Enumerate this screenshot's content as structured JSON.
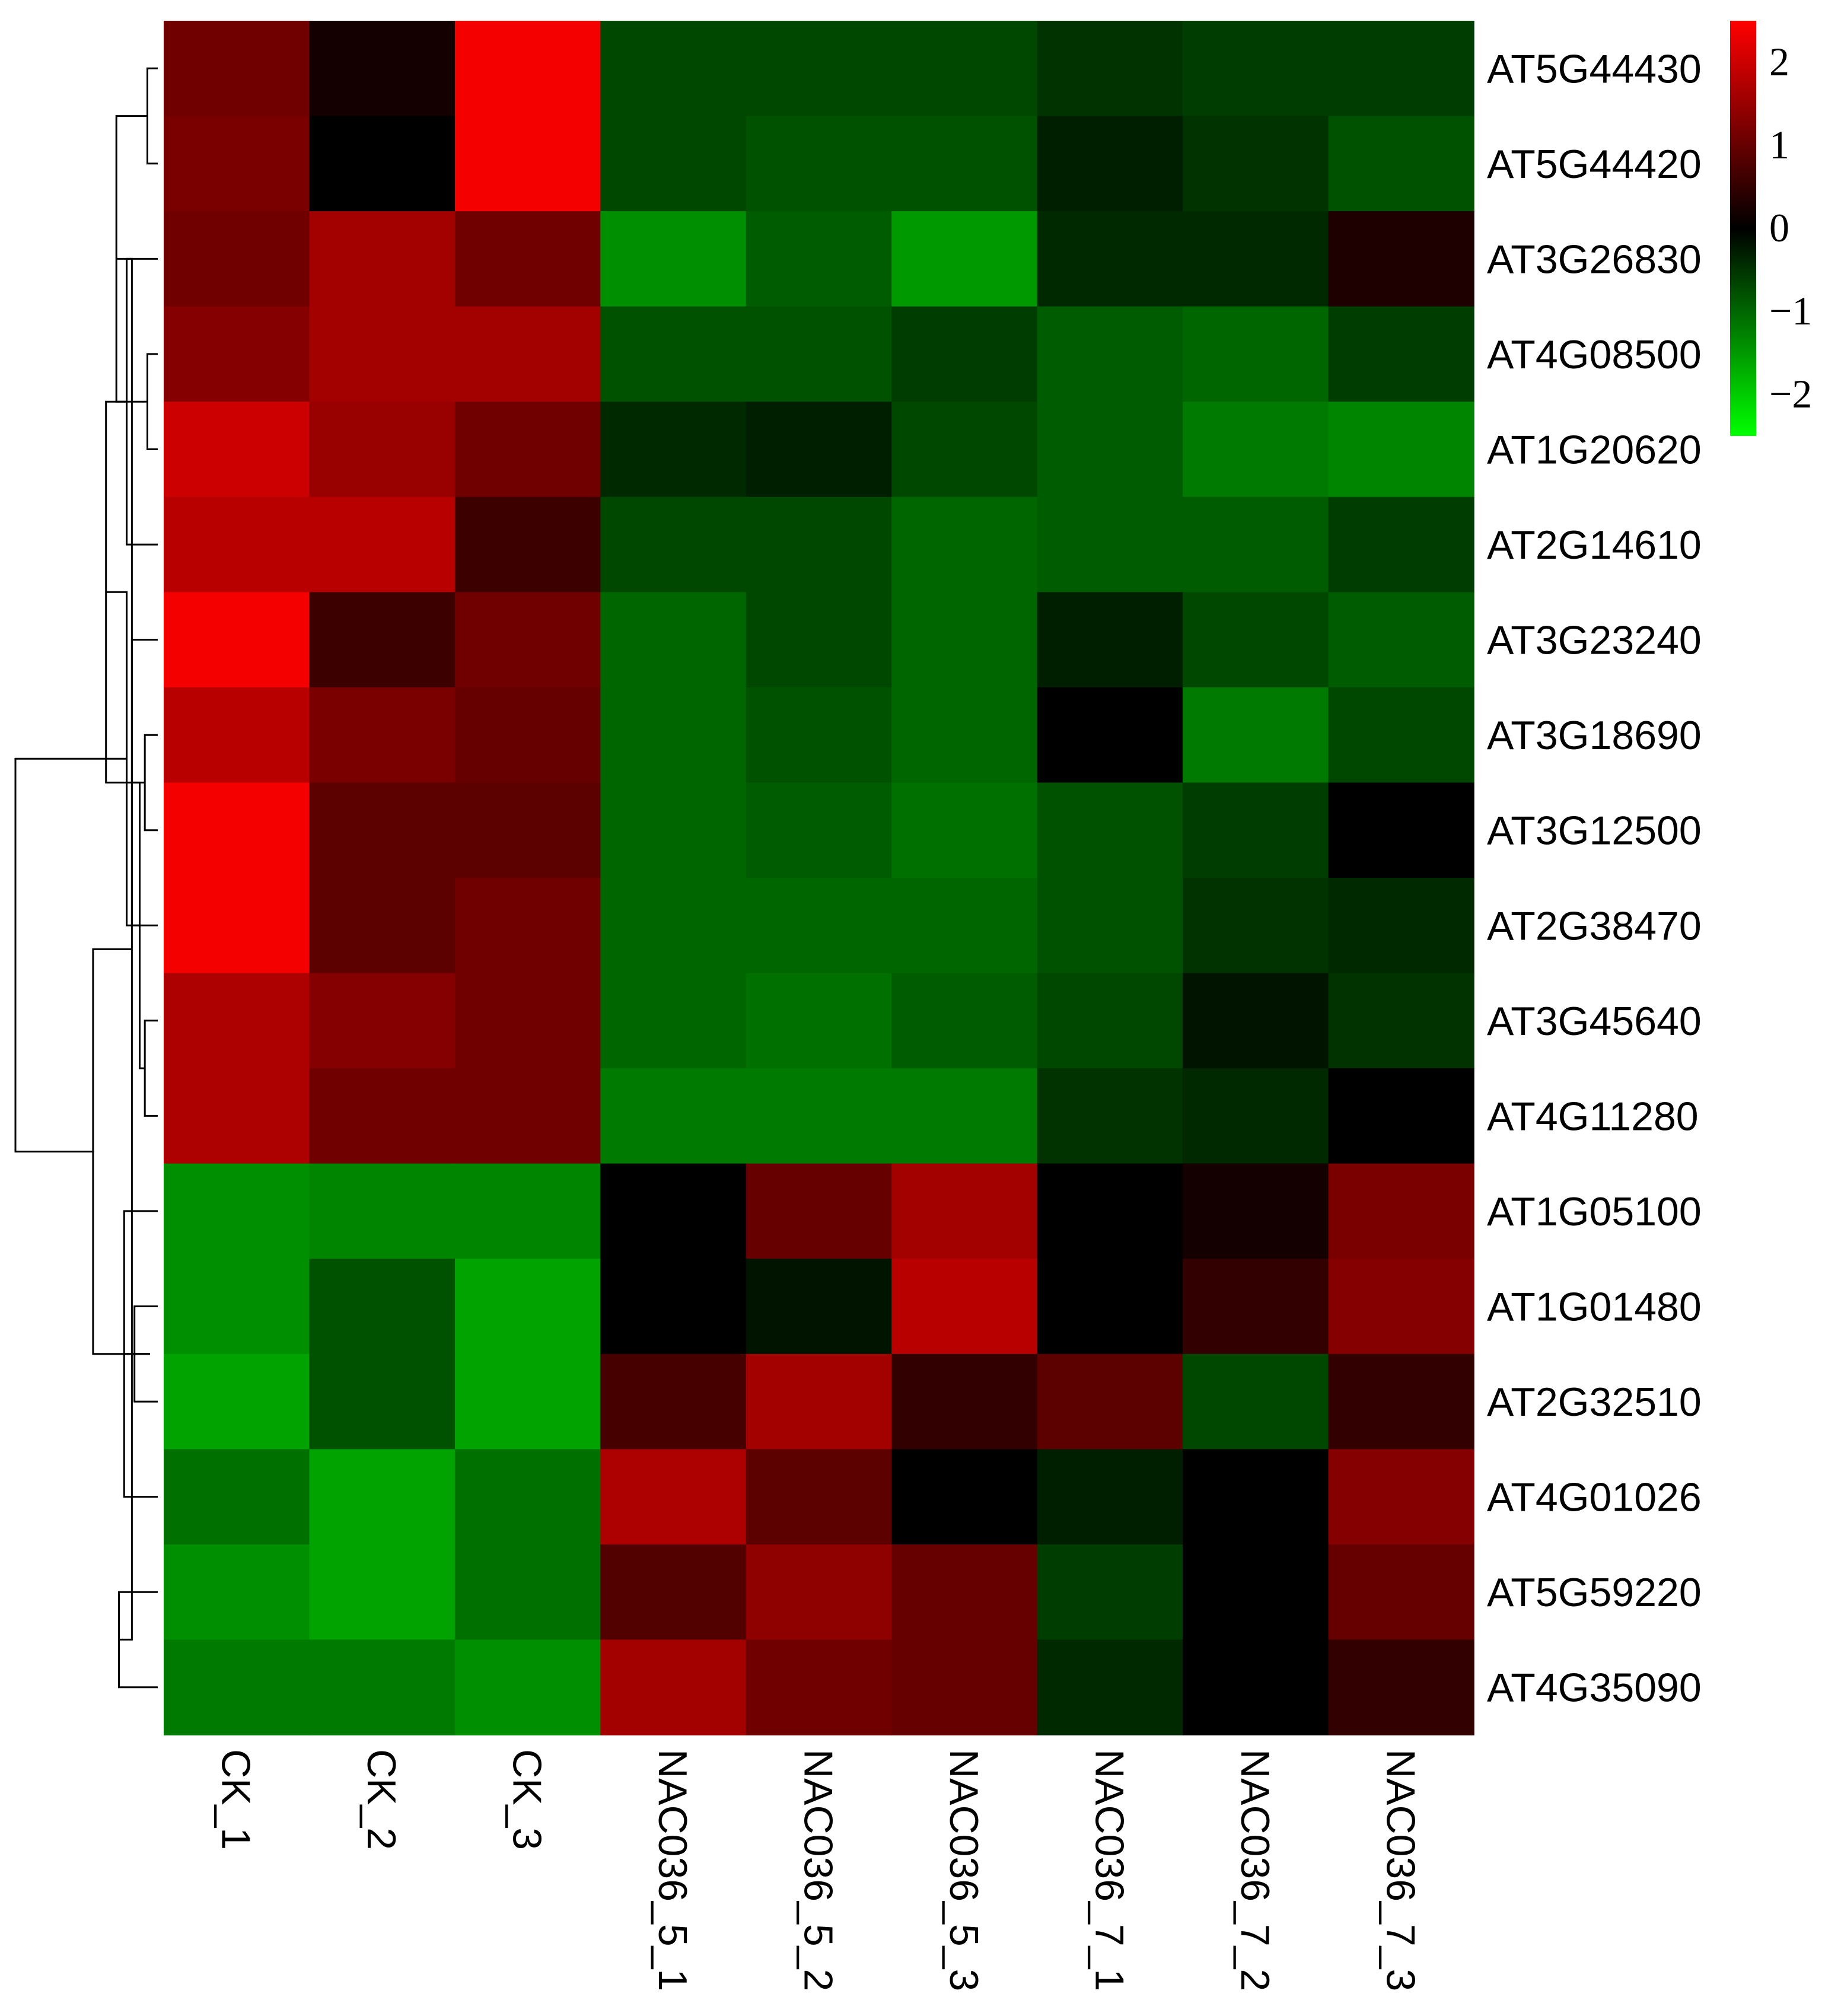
{
  "chart_data": {
    "type": "heatmap",
    "columns": [
      "CK_1",
      "CK_2",
      "CK_3",
      "NAC036_5_1",
      "NAC036_5_2",
      "NAC036_5_3",
      "NAC036_7_1",
      "NAC036_7_2",
      "NAC036_7_3"
    ],
    "rows": [
      "AT5G44430",
      "AT5G44420",
      "AT3G26830",
      "AT4G08500",
      "AT1G20620",
      "AT2G14610",
      "AT3G23240",
      "AT3G18690",
      "AT3G12500",
      "AT2G38470",
      "AT3G45640",
      "AT4G11280",
      "AT1G05100",
      "AT1G01480",
      "AT2G32510",
      "AT4G01026",
      "AT5G59220",
      "AT4G35090"
    ],
    "values": [
      [
        1.1,
        0.2,
        2.4,
        -0.7,
        -0.7,
        -0.7,
        -0.5,
        -0.6,
        -0.6
      ],
      [
        1.2,
        0.0,
        2.4,
        -0.7,
        -0.8,
        -0.8,
        -0.3,
        -0.5,
        -0.8
      ],
      [
        1.1,
        1.6,
        1.1,
        -1.4,
        -0.9,
        -1.5,
        -0.4,
        -0.4,
        0.3
      ],
      [
        1.3,
        1.6,
        1.6,
        -0.8,
        -0.8,
        -0.6,
        -0.9,
        -1.0,
        -0.6
      ],
      [
        2.0,
        1.5,
        1.1,
        -0.4,
        -0.3,
        -0.7,
        -0.9,
        -1.2,
        -1.3
      ],
      [
        1.8,
        1.8,
        0.6,
        -0.7,
        -0.7,
        -1.0,
        -0.9,
        -0.9,
        -0.6
      ],
      [
        2.4,
        0.6,
        1.1,
        -1.0,
        -0.7,
        -1.0,
        -0.3,
        -0.7,
        -0.9
      ],
      [
        1.8,
        1.2,
        1.0,
        -1.0,
        -0.8,
        -1.0,
        0.0,
        -1.2,
        -0.7
      ],
      [
        2.4,
        0.9,
        0.9,
        -1.0,
        -0.9,
        -1.1,
        -0.8,
        -0.6,
        0.0
      ],
      [
        2.4,
        0.9,
        1.1,
        -1.0,
        -1.0,
        -1.0,
        -0.8,
        -0.5,
        -0.4
      ],
      [
        1.7,
        1.3,
        1.1,
        -1.0,
        -1.1,
        -0.9,
        -0.7,
        -0.2,
        -0.5
      ],
      [
        1.7,
        1.1,
        1.1,
        -1.2,
        -1.2,
        -1.2,
        -0.5,
        -0.4,
        0.0
      ],
      [
        -1.4,
        -1.3,
        -1.3,
        0.0,
        1.0,
        1.6,
        0.0,
        0.2,
        1.2
      ],
      [
        -1.4,
        -0.8,
        -1.6,
        0.0,
        -0.2,
        1.8,
        0.0,
        0.5,
        1.3
      ],
      [
        -1.6,
        -0.8,
        -1.6,
        0.7,
        1.6,
        0.5,
        0.9,
        -0.7,
        0.5
      ],
      [
        -1.1,
        -1.6,
        -1.1,
        1.7,
        0.9,
        0.0,
        -0.3,
        0.0,
        1.3
      ],
      [
        -1.4,
        -1.6,
        -1.1,
        0.8,
        1.4,
        1.0,
        -0.6,
        0.0,
        1.0
      ],
      [
        -1.2,
        -1.2,
        -1.4,
        1.6,
        1.1,
        1.0,
        -0.4,
        0.0,
        0.5
      ]
    ],
    "color_scale": {
      "min": -2.5,
      "max": 2.5,
      "low_color": "#00ff00",
      "mid_color": "#000000",
      "high_color": "#ff0000"
    },
    "legend": {
      "ticks": [
        2,
        1,
        0,
        -1,
        -2
      ],
      "tick_labels": [
        "2",
        "1",
        "0",
        "−1",
        "−2"
      ],
      "placement": "top-right"
    },
    "row_dendrogram": {
      "merges": [
        [
          0,
          1
        ],
        [
          3,
          4
        ],
        [
          2,
          5
        ],
        [
          7,
          8
        ],
        [
          6,
          9
        ],
        [
          10,
          11
        ],
        [
          13,
          14
        ],
        [
          12,
          15
        ],
        [
          16,
          17
        ],
        [
          18,
          19
        ],
        [
          20,
          21
        ],
        [
          22,
          23
        ],
        [
          24,
          25
        ],
        [
          26,
          27
        ],
        [
          28,
          29
        ],
        [
          30,
          31
        ],
        [
          32,
          33
        ]
      ],
      "heights": [
        0.04,
        0.04,
        0.12,
        0.05,
        0.1,
        0.05,
        0.09,
        0.13,
        0.15,
        0.16,
        0.2,
        0.07,
        0.03,
        0.1,
        0.12,
        0.25,
        0.55
      ],
      "leaf_order": [
        0,
        1,
        2,
        3,
        4,
        5,
        6,
        7,
        8,
        9,
        10,
        11,
        12,
        13,
        14,
        15,
        16,
        17
      ]
    }
  }
}
